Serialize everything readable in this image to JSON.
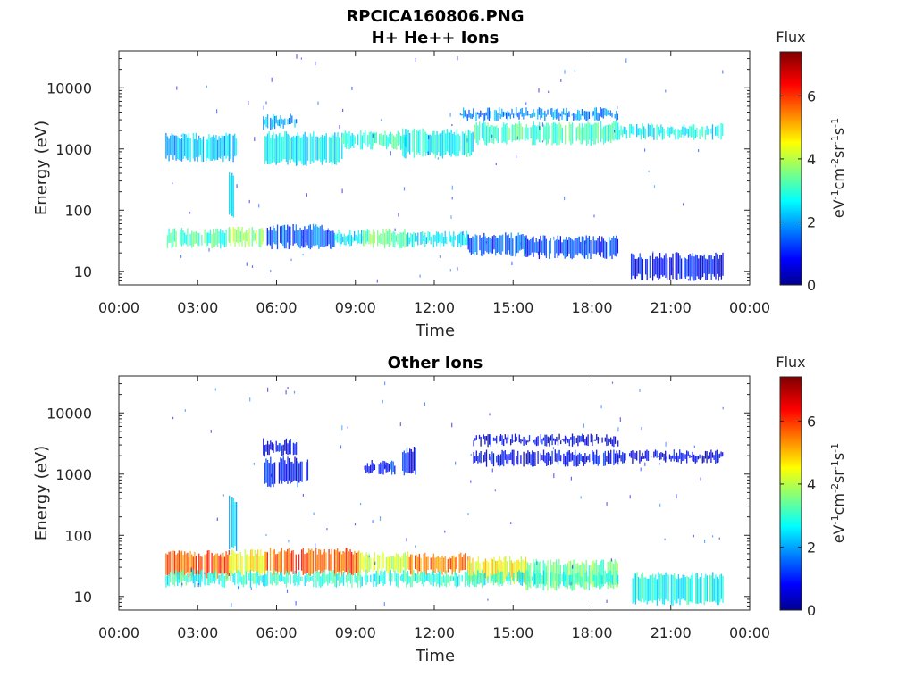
{
  "title": "RPCICA160806.PNG",
  "colors": {
    "axis": "#262626",
    "background": "#ffffff"
  },
  "chart_data": [
    {
      "type": "heatmap",
      "title": "H+ He++ Ions",
      "xlabel": "Time",
      "ylabel": "Energy (eV)",
      "x_ticks": [
        "00:00",
        "03:00",
        "06:00",
        "09:00",
        "12:00",
        "15:00",
        "18:00",
        "21:00",
        "00:00"
      ],
      "y_ticks": [
        "10",
        "100",
        "1000",
        "10000"
      ],
      "y_scale": "log",
      "ylim": [
        6,
        40000
      ],
      "xlim_hours": [
        0,
        24
      ],
      "colorbar": {
        "title": "Flux",
        "label": "eV-1cm-2sr-1s-1",
        "ticks": [
          "0",
          "2",
          "4",
          "6"
        ],
        "range": [
          0,
          7.4
        ],
        "colormap": "jet"
      },
      "bands": [
        {
          "t0": 1.8,
          "t1": 4.2,
          "e0": 27,
          "e1": 45,
          "flux": 3.2
        },
        {
          "t0": 4.2,
          "t1": 5.6,
          "e0": 28,
          "e1": 48,
          "flux": 3.9
        },
        {
          "t0": 5.6,
          "t1": 8.2,
          "e0": 26,
          "e1": 52,
          "flux": 1.6
        },
        {
          "t0": 8.2,
          "t1": 9.3,
          "e0": 28,
          "e1": 42,
          "flux": 2.6
        },
        {
          "t0": 9.3,
          "t1": 11.0,
          "e0": 27,
          "e1": 44,
          "flux": 3.5
        },
        {
          "t0": 11.0,
          "t1": 13.3,
          "e0": 28,
          "e1": 40,
          "flux": 2.8
        },
        {
          "t0": 13.3,
          "t1": 15.5,
          "e0": 20,
          "e1": 38,
          "flux": 1.6
        },
        {
          "t0": 15.5,
          "t1": 19.0,
          "e0": 18,
          "e1": 34,
          "flux": 1.4
        },
        {
          "t0": 19.5,
          "t1": 23.0,
          "e0": 8,
          "e1": 18,
          "flux": 0.9
        },
        {
          "t0": 1.8,
          "t1": 4.5,
          "e0": 700,
          "e1": 1600,
          "flux": 2.4
        },
        {
          "t0": 5.5,
          "t1": 8.5,
          "e0": 600,
          "e1": 1700,
          "flux": 2.7
        },
        {
          "t0": 5.5,
          "t1": 6.8,
          "e0": 2300,
          "e1": 3400,
          "flux": 2.2
        },
        {
          "t0": 8.5,
          "t1": 11.0,
          "e0": 1100,
          "e1": 1800,
          "flux": 3.0
        },
        {
          "t0": 10.8,
          "t1": 13.5,
          "e0": 800,
          "e1": 1900,
          "flux": 2.8
        },
        {
          "t0": 13.5,
          "t1": 19.0,
          "e0": 1300,
          "e1": 2500,
          "flux": 3.2
        },
        {
          "t0": 13.0,
          "t1": 19.0,
          "e0": 3200,
          "e1": 4200,
          "flux": 1.9
        },
        {
          "t0": 19.0,
          "t1": 23.0,
          "e0": 1600,
          "e1": 2300,
          "flux": 2.7
        },
        {
          "t0": 4.2,
          "t1": 4.4,
          "e0": 80,
          "e1": 380,
          "flux": 2.6
        }
      ]
    },
    {
      "type": "heatmap",
      "title": "Other Ions",
      "xlabel": "Time",
      "ylabel": "Energy (eV)",
      "x_ticks": [
        "00:00",
        "03:00",
        "06:00",
        "09:00",
        "12:00",
        "15:00",
        "18:00",
        "21:00",
        "00:00"
      ],
      "y_ticks": [
        "10",
        "100",
        "1000",
        "10000"
      ],
      "y_scale": "log",
      "ylim": [
        6,
        40000
      ],
      "xlim_hours": [
        0,
        24
      ],
      "colorbar": {
        "title": "Flux",
        "label": "eV-1cm-2sr-1s-1",
        "ticks": [
          "0",
          "2",
          "4",
          "6"
        ],
        "range": [
          0,
          7.4
        ],
        "colormap": "jet"
      },
      "bands": [
        {
          "t0": 1.8,
          "t1": 4.2,
          "e0": 22,
          "e1": 50,
          "flux": 5.8
        },
        {
          "t0": 4.2,
          "t1": 5.6,
          "e0": 24,
          "e1": 52,
          "flux": 4.6
        },
        {
          "t0": 5.6,
          "t1": 9.2,
          "e0": 24,
          "e1": 55,
          "flux": 5.9
        },
        {
          "t0": 9.2,
          "t1": 11.0,
          "e0": 26,
          "e1": 48,
          "flux": 4.2
        },
        {
          "t0": 11.0,
          "t1": 13.3,
          "e0": 25,
          "e1": 46,
          "flux": 5.6
        },
        {
          "t0": 13.3,
          "t1": 15.5,
          "e0": 18,
          "e1": 40,
          "flux": 4.6
        },
        {
          "t0": 15.5,
          "t1": 19.0,
          "e0": 14,
          "e1": 36,
          "flux": 3.6
        },
        {
          "t0": 19.5,
          "t1": 23.0,
          "e0": 8,
          "e1": 22,
          "flux": 2.9
        },
        {
          "t0": 1.8,
          "t1": 19.0,
          "e0": 16,
          "e1": 24,
          "flux": 3.0
        },
        {
          "t0": 4.2,
          "t1": 4.5,
          "e0": 60,
          "e1": 400,
          "flux": 2.4
        },
        {
          "t0": 5.5,
          "t1": 7.2,
          "e0": 700,
          "e1": 1700,
          "flux": 1.0
        },
        {
          "t0": 5.5,
          "t1": 6.8,
          "e0": 2200,
          "e1": 3400,
          "flux": 0.9
        },
        {
          "t0": 9.3,
          "t1": 10.5,
          "e0": 1100,
          "e1": 1500,
          "flux": 1.1
        },
        {
          "t0": 10.8,
          "t1": 11.3,
          "e0": 1000,
          "e1": 2500,
          "flux": 1.0
        },
        {
          "t0": 13.5,
          "t1": 19.0,
          "e0": 1500,
          "e1": 2200,
          "flux": 0.9
        },
        {
          "t0": 13.5,
          "t1": 19.0,
          "e0": 3200,
          "e1": 4000,
          "flux": 0.7
        },
        {
          "t0": 19.0,
          "t1": 23.0,
          "e0": 1700,
          "e1": 2200,
          "flux": 0.8
        }
      ]
    }
  ]
}
